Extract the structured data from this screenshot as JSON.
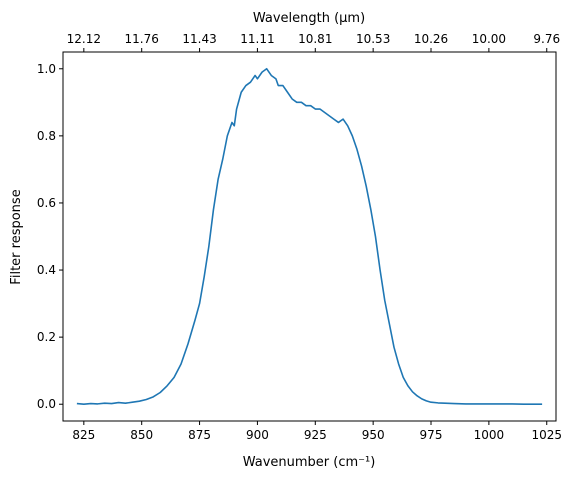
{
  "chart_data": {
    "type": "line",
    "xlabel": "Wavenumber (cm⁻¹)",
    "ylabel": "Filter response",
    "top_xlabel": "Wavelength (μm)",
    "xlim": [
      816,
      1029
    ],
    "ylim": [
      -0.05,
      1.05
    ],
    "x_ticks": [
      825,
      850,
      875,
      900,
      925,
      950,
      975,
      1000,
      1025
    ],
    "y_ticks": [
      0.0,
      0.2,
      0.4,
      0.6,
      0.8,
      1.0
    ],
    "y_tick_labels": [
      "0.0",
      "0.2",
      "0.4",
      "0.6",
      "0.8",
      "1.0"
    ],
    "top_tick_wavenumbers": [
      825,
      850,
      875,
      900,
      925,
      950,
      975,
      1000,
      1025
    ],
    "top_tick_labels": [
      "12.12",
      "11.76",
      "11.43",
      "11.11",
      "10.81",
      "10.53",
      "10.26",
      "10.00",
      "9.76"
    ],
    "grid": false,
    "series": [
      {
        "color": "#1f77b4",
        "x": [
          822,
          825,
          828,
          831,
          834,
          837,
          840,
          843,
          846,
          849,
          852,
          855,
          858,
          861,
          864,
          867,
          870,
          873,
          875,
          877,
          879,
          881,
          883,
          885,
          887,
          889,
          890,
          891,
          893,
          895,
          897,
          899,
          900,
          902,
          904,
          906,
          908,
          909,
          911,
          913,
          915,
          917,
          919,
          921,
          923,
          925,
          927,
          929,
          931,
          933,
          935,
          937,
          939,
          941,
          943,
          945,
          947,
          949,
          951,
          953,
          955,
          957,
          959,
          961,
          963,
          965,
          967,
          969,
          971,
          973,
          975,
          978,
          981,
          985,
          990,
          995,
          1000,
          1005,
          1010,
          1015,
          1020,
          1023
        ],
        "y": [
          0.002,
          0.0,
          0.002,
          0.001,
          0.003,
          0.002,
          0.005,
          0.003,
          0.006,
          0.009,
          0.014,
          0.022,
          0.035,
          0.055,
          0.08,
          0.12,
          0.18,
          0.25,
          0.3,
          0.38,
          0.47,
          0.58,
          0.67,
          0.73,
          0.8,
          0.84,
          0.83,
          0.88,
          0.93,
          0.95,
          0.96,
          0.98,
          0.97,
          0.99,
          1.0,
          0.98,
          0.97,
          0.95,
          0.95,
          0.93,
          0.91,
          0.9,
          0.9,
          0.89,
          0.89,
          0.88,
          0.88,
          0.87,
          0.86,
          0.85,
          0.84,
          0.85,
          0.83,
          0.8,
          0.76,
          0.71,
          0.65,
          0.58,
          0.5,
          0.4,
          0.31,
          0.24,
          0.17,
          0.12,
          0.08,
          0.055,
          0.037,
          0.025,
          0.016,
          0.01,
          0.006,
          0.004,
          0.003,
          0.002,
          0.001,
          0.001,
          0.001,
          0.001,
          0.001,
          0.0,
          0.0,
          0.0
        ]
      }
    ]
  }
}
